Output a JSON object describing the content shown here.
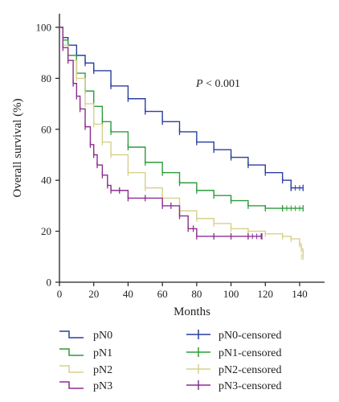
{
  "chart_data": {
    "type": "line",
    "title": "",
    "xlabel": "Months",
    "ylabel": "Overall survival (%)",
    "xlim": [
      0,
      150
    ],
    "ylim": [
      0,
      100
    ],
    "x_ticks": [
      0,
      20,
      40,
      60,
      80,
      100,
      120,
      140
    ],
    "y_ticks": [
      0,
      20,
      40,
      60,
      80,
      100
    ],
    "annotation": {
      "italic": "P",
      "text": " < 0.001"
    },
    "grid": false,
    "legend_position": "bottom",
    "series": [
      {
        "name": "pN0",
        "color": "#2a3f9e",
        "x": [
          0,
          2,
          5,
          10,
          15,
          20,
          30,
          40,
          50,
          60,
          70,
          80,
          90,
          100,
          110,
          120,
          130,
          135,
          142
        ],
        "y": [
          100,
          96,
          93,
          89,
          86,
          83,
          77,
          72,
          67,
          63,
          59,
          55,
          52,
          49,
          46,
          43,
          40,
          37,
          37
        ]
      },
      {
        "name": "pN1",
        "color": "#2d9c3c",
        "x": [
          0,
          2,
          5,
          10,
          15,
          20,
          25,
          30,
          40,
          50,
          60,
          70,
          80,
          90,
          100,
          110,
          120,
          130,
          142
        ],
        "y": [
          100,
          95,
          89,
          82,
          75,
          69,
          63,
          59,
          53,
          47,
          43,
          39,
          36,
          34,
          32,
          30,
          29,
          29,
          29
        ]
      },
      {
        "name": "pN2",
        "color": "#d8d08c",
        "x": [
          0,
          2,
          5,
          10,
          15,
          20,
          25,
          30,
          40,
          50,
          60,
          70,
          80,
          90,
          100,
          110,
          120,
          130,
          135,
          140,
          141,
          142
        ],
        "y": [
          100,
          93,
          87,
          80,
          70,
          62,
          55,
          50,
          43,
          37,
          33,
          28,
          25,
          23,
          21,
          20,
          19,
          18,
          17,
          15,
          13,
          10
        ]
      },
      {
        "name": "pN3",
        "color": "#8b2f8f",
        "x": [
          0,
          2,
          5,
          8,
          10,
          12,
          15,
          18,
          20,
          22,
          25,
          28,
          30,
          35,
          40,
          50,
          60,
          65,
          70,
          75,
          78,
          80,
          90,
          100,
          110,
          118
        ],
        "y": [
          100,
          92,
          87,
          78,
          73,
          68,
          61,
          54,
          50,
          46,
          42,
          38,
          36,
          36,
          33,
          33,
          30,
          30,
          26,
          21,
          21,
          18,
          18,
          18,
          18,
          18
        ]
      }
    ],
    "legend": {
      "left": [
        "pN0",
        "pN1",
        "pN2",
        "pN3"
      ],
      "right": [
        "pN0-censored",
        "pN1-censored",
        "pN2-censored",
        "pN3-censored"
      ]
    }
  }
}
